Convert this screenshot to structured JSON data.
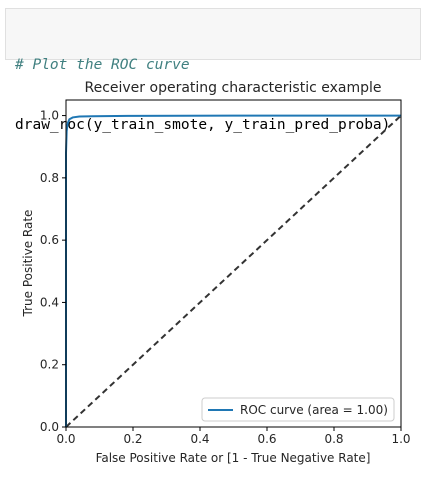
{
  "code": {
    "comment": "# Plot the ROC curve",
    "call": "draw_roc(y_train_smote, y_train_pred_proba)"
  },
  "chart_data": {
    "type": "line",
    "title": "Receiver operating characteristic example",
    "xlabel": "False Positive Rate or [1 - True Negative Rate]",
    "ylabel": "True Positive Rate",
    "xlim": [
      0.0,
      1.0
    ],
    "ylim": [
      0.0,
      1.05
    ],
    "xticks": [
      "0.0",
      "0.2",
      "0.4",
      "0.6",
      "0.8",
      "1.0"
    ],
    "yticks": [
      "0.0",
      "0.2",
      "0.4",
      "0.6",
      "0.8",
      "1.0"
    ],
    "grid": false,
    "legend_position": "lower-right",
    "series": [
      {
        "name": "ROC curve (area = 1.00)",
        "color": "#1f77b4",
        "style": "solid",
        "x": [
          0.0,
          0.0,
          0.002,
          0.005,
          0.01,
          0.02,
          0.04,
          0.08,
          0.2,
          0.5,
          1.0
        ],
        "y": [
          0.0,
          0.88,
          0.95,
          0.975,
          0.988,
          0.994,
          0.997,
          0.998,
          0.999,
          1.0,
          1.0
        ]
      },
      {
        "color": "#333333",
        "style": "dashed",
        "x": [
          0.0,
          1.0
        ],
        "y": [
          0.0,
          1.0
        ]
      }
    ]
  }
}
